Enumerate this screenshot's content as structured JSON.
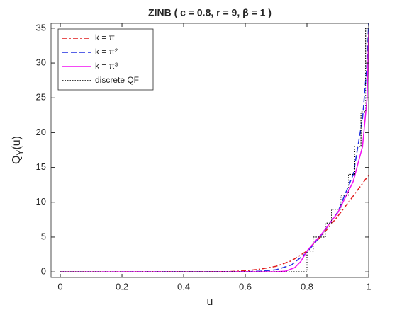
{
  "chart_data": {
    "type": "line",
    "title": "ZINB ( c = 0.8, r = 9, β = 1 )",
    "xlabel": "u",
    "ylabel": [
      "Q",
      "Y",
      "(u)"
    ],
    "xlim": [
      -0.03,
      1
    ],
    "ylim": [
      -0.8,
      35.7
    ],
    "xticks": [
      0,
      0.2,
      0.4,
      0.6,
      0.8,
      1
    ],
    "yticks": [
      0,
      5,
      10,
      15,
      20,
      25,
      30,
      35
    ],
    "grid": false,
    "legend": "upper-left",
    "series": [
      {
        "name": "k = π",
        "color": "#e0191a",
        "dash": "dashdot",
        "x": [
          0,
          0.5,
          0.55,
          0.6,
          0.65,
          0.7,
          0.75,
          0.8,
          0.85,
          0.9,
          0.95,
          1
        ],
        "values": [
          0,
          0.02,
          0.05,
          0.15,
          0.4,
          0.8,
          1.6,
          3.0,
          5.3,
          8.0,
          10.9,
          13.9
        ]
      },
      {
        "name": "k = π²",
        "color": "#1f2fe0",
        "dash": "dashed",
        "x": [
          0,
          0.6,
          0.65,
          0.7,
          0.75,
          0.8,
          0.85,
          0.9,
          0.95,
          0.98,
          0.995,
          1
        ],
        "values": [
          0,
          0.02,
          0.1,
          0.3,
          1.0,
          2.8,
          5.5,
          8.6,
          14,
          22,
          30,
          36
        ]
      },
      {
        "name": "k = π³",
        "color": "#f20ff2",
        "dash": "solid",
        "x": [
          0,
          0.7,
          0.73,
          0.76,
          0.78,
          0.8,
          0.85,
          0.9,
          0.95,
          0.98,
          0.995,
          1
        ],
        "values": [
          0,
          0.01,
          0.1,
          0.6,
          1.5,
          3.0,
          5.6,
          8.5,
          13,
          18,
          25,
          34.5
        ]
      },
      {
        "name": "discrete QF",
        "color": "#000000",
        "dash": "dotted",
        "x": [
          0,
          0.8,
          0.8,
          0.82,
          0.82,
          0.86,
          0.86,
          0.88,
          0.88,
          0.91,
          0.91,
          0.935,
          0.935,
          0.955,
          0.955,
          0.975,
          0.975,
          0.99,
          0.99,
          1
        ],
        "values": [
          0,
          0,
          3,
          3,
          5,
          5,
          7,
          7,
          9,
          9,
          11,
          11,
          14,
          14,
          18,
          18,
          23,
          23,
          35,
          35
        ]
      }
    ]
  }
}
